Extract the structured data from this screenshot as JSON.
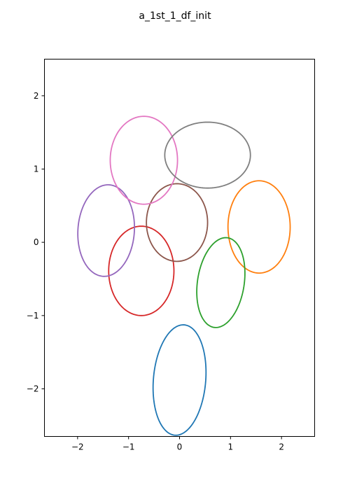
{
  "chart_data": {
    "type": "line",
    "title": "a_1st_1_df_init",
    "xlabel": "",
    "ylabel": "",
    "xlim": [
      -2.65,
      2.65
    ],
    "ylim": [
      -2.65,
      2.5
    ],
    "xticks": [
      -2,
      -1,
      0,
      1,
      2
    ],
    "yticks": [
      -2,
      -1,
      0,
      1,
      2
    ],
    "xtick_labels": [
      "−2",
      "−1",
      "0",
      "1",
      "2"
    ],
    "ytick_labels": [
      "−2",
      "−1",
      "0",
      "1",
      "2"
    ],
    "grid": false,
    "legend": false,
    "series": [
      {
        "color": "#1f77b4",
        "shape": "ellipse",
        "center": [
          0.0,
          -1.88
        ],
        "semi_axes": [
          0.76,
          0.51
        ],
        "angle_deg": 80
      },
      {
        "color": "#ff7f0e",
        "shape": "ellipse",
        "center": [
          1.56,
          0.21
        ],
        "semi_axes": [
          0.63,
          0.61
        ],
        "angle_deg": 92
      },
      {
        "color": "#2ca02c",
        "shape": "ellipse",
        "center": [
          0.81,
          -0.55
        ],
        "semi_axes": [
          0.63,
          0.45
        ],
        "angle_deg": 71
      },
      {
        "color": "#d62728",
        "shape": "ellipse",
        "center": [
          -0.75,
          -0.39
        ],
        "semi_axes": [
          0.61,
          0.64
        ],
        "angle_deg": 90
      },
      {
        "color": "#9467bd",
        "shape": "ellipse",
        "center": [
          -1.44,
          0.16
        ],
        "semi_axes": [
          0.63,
          0.55
        ],
        "angle_deg": 75
      },
      {
        "color": "#8c564b",
        "shape": "ellipse",
        "center": [
          -0.05,
          0.27
        ],
        "semi_axes": [
          0.53,
          0.6
        ],
        "angle_deg": 90
      },
      {
        "color": "#e377c2",
        "shape": "ellipse",
        "center": [
          -0.7,
          1.12
        ],
        "semi_axes": [
          0.6,
          0.66
        ],
        "angle_deg": 90
      },
      {
        "color": "#7f7f7f",
        "shape": "ellipse",
        "center": [
          0.55,
          1.19
        ],
        "semi_axes": [
          0.84,
          0.45
        ],
        "angle_deg": 0
      }
    ]
  }
}
